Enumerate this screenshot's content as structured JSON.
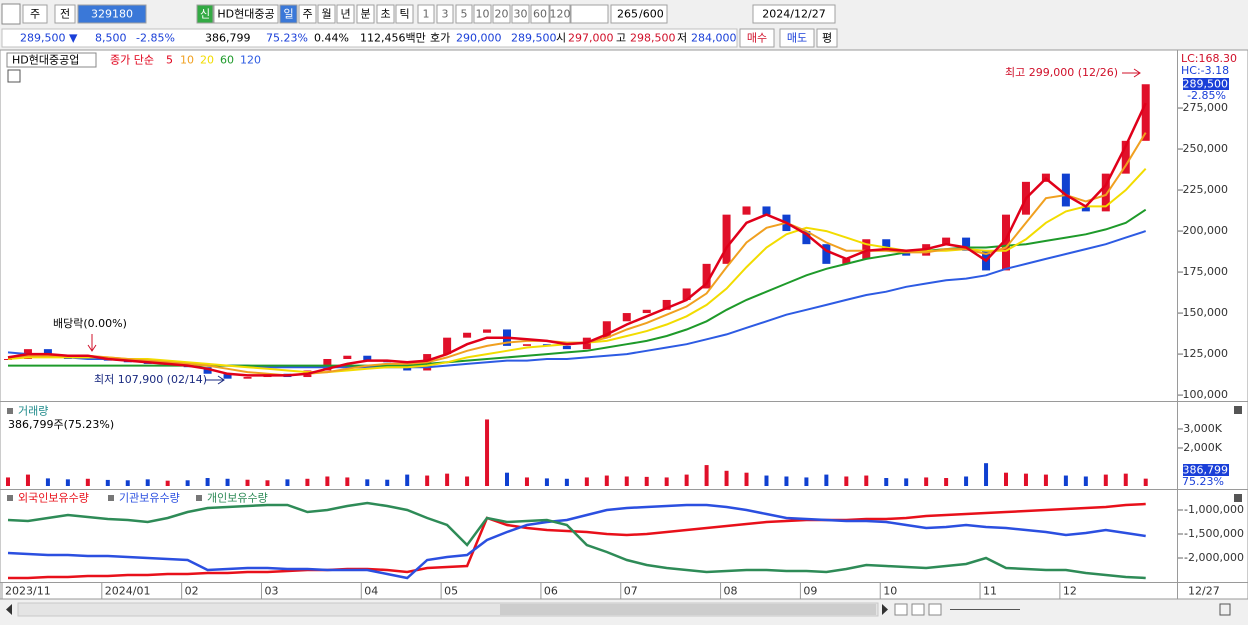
{
  "toolbar": {
    "period_menu": "주",
    "compare": "전",
    "code": "329180",
    "badge": "신",
    "name": "HD현대중공",
    "intervals": [
      "일",
      "주",
      "월",
      "년",
      "분",
      "초",
      "틱"
    ],
    "counts": [
      "1",
      "3",
      "5",
      "10",
      "20",
      "30",
      "60",
      "120"
    ],
    "count": 265,
    "max_count": "/600",
    "date": "2024/12/27"
  },
  "quote": {
    "price": "289,500 ▼",
    "change": "8,500",
    "change_rate": "-2.85%",
    "volume": "386,799",
    "volume_ratio": "75.23%",
    "turnover": "0.44%",
    "amount": "112,456백만",
    "ask_label": "호가",
    "ask": "290,000",
    "bid": "289,500",
    "open_label": "시",
    "open": "297,000",
    "high_label": "고",
    "high": "298,500",
    "low_label": "저",
    "low": "284,000",
    "buy": "매수",
    "sell": "매도",
    "avg": "평"
  },
  "x_axis": {
    "categories": [
      "2023/11",
      null,
      null,
      null,
      null,
      "2024/01",
      null,
      null,
      null,
      "02",
      null,
      null,
      null,
      "03",
      null,
      null,
      null,
      null,
      "04",
      null,
      null,
      null,
      "05",
      null,
      null,
      null,
      null,
      "06",
      null,
      null,
      null,
      "07",
      null,
      null,
      null,
      null,
      "08",
      null,
      null,
      null,
      "09",
      null,
      null,
      null,
      "10",
      null,
      null,
      null,
      null,
      "11",
      null,
      null,
      null,
      "12",
      null,
      null,
      null,
      null
    ],
    "last_label": "12/27"
  },
  "chart_data": [
    {
      "type": "candlestick",
      "title": "HD현대중공업",
      "subtitle": "종가 단순",
      "close": [
        122000,
        128000,
        124000,
        122000,
        123000,
        121000,
        120000,
        119000,
        119000,
        117000,
        113000,
        110000,
        111000,
        113000,
        111000,
        115000,
        122000,
        124000,
        121000,
        120000,
        115000,
        125000,
        135000,
        138000,
        140000,
        130000,
        131000,
        130000,
        128000,
        135000,
        145000,
        150000,
        152000,
        158000,
        165000,
        180000,
        210000,
        215000,
        210000,
        200000,
        192000,
        180000,
        183000,
        195000,
        188000,
        185000,
        192000,
        196000,
        188000,
        176000,
        210000,
        230000,
        235000,
        215000,
        212000,
        235000,
        255000,
        289500
      ],
      "up_color": "#e0102a",
      "down_color": "#1040d0",
      "series": [
        {
          "name": "5",
          "color": "#e0001a",
          "values": [
            123000,
            125000,
            125000,
            124000,
            124000,
            122000,
            121000,
            120000,
            119000,
            118000,
            116000,
            113000,
            112000,
            112000,
            112000,
            113000,
            116000,
            119000,
            121000,
            121000,
            120000,
            121000,
            125000,
            131000,
            135000,
            135000,
            134000,
            133000,
            131000,
            132000,
            137000,
            143000,
            148000,
            153000,
            158000,
            168000,
            190000,
            205000,
            210000,
            205000,
            198000,
            188000,
            183000,
            188000,
            189000,
            188000,
            189000,
            192000,
            190000,
            182000,
            195000,
            220000,
            232000,
            222000,
            215000,
            228000,
            252000,
            278000
          ]
        },
        {
          "name": "10",
          "color": "#f0a020",
          "values": [
            123000,
            124000,
            124000,
            124000,
            124000,
            123000,
            122000,
            121000,
            120000,
            119000,
            118000,
            116000,
            114000,
            113000,
            112000,
            113000,
            114000,
            116000,
            118000,
            119000,
            119000,
            120000,
            123000,
            127000,
            130000,
            132000,
            133000,
            133000,
            132000,
            132000,
            135000,
            140000,
            144000,
            149000,
            154000,
            162000,
            178000,
            193000,
            202000,
            205000,
            200000,
            193000,
            188000,
            188000,
            188000,
            187000,
            187000,
            189000,
            189000,
            186000,
            190000,
            205000,
            220000,
            222000,
            218000,
            222000,
            240000,
            260000
          ]
        },
        {
          "name": "20",
          "color": "#f2dc00",
          "values": [
            122000,
            123000,
            123000,
            123000,
            123000,
            123000,
            122000,
            122000,
            121000,
            120000,
            119000,
            118000,
            117000,
            116000,
            115000,
            114000,
            114000,
            115000,
            116000,
            117000,
            117000,
            118000,
            120000,
            123000,
            125000,
            127000,
            129000,
            130000,
            131000,
            132000,
            133000,
            136000,
            139000,
            143000,
            148000,
            155000,
            165000,
            178000,
            190000,
            198000,
            202000,
            200000,
            196000,
            192000,
            190000,
            188000,
            188000,
            188000,
            189000,
            188000,
            188000,
            195000,
            205000,
            212000,
            215000,
            215000,
            225000,
            238000
          ]
        },
        {
          "name": "60",
          "color": "#1e9a2a",
          "values": [
            118000,
            118000,
            118000,
            118000,
            118000,
            118000,
            118000,
            118000,
            118000,
            118000,
            118000,
            118000,
            118000,
            118000,
            118000,
            118000,
            118000,
            118000,
            118000,
            118000,
            118000,
            119000,
            120000,
            121000,
            122000,
            123000,
            124000,
            125000,
            126000,
            127000,
            129000,
            131000,
            133000,
            136000,
            140000,
            145000,
            152000,
            158000,
            163000,
            168000,
            173000,
            177000,
            180000,
            183000,
            185000,
            187000,
            188000,
            189000,
            190000,
            190000,
            191000,
            192000,
            194000,
            196000,
            198000,
            201000,
            205000,
            213000
          ]
        },
        {
          "name": "120",
          "color": "#2d5be3",
          "values": [
            126000,
            125000,
            124000,
            123000,
            122000,
            122000,
            121000,
            120000,
            119000,
            119000,
            118000,
            118000,
            118000,
            117000,
            117000,
            117000,
            117000,
            117000,
            117000,
            117000,
            117000,
            117000,
            118000,
            119000,
            120000,
            121000,
            121000,
            122000,
            122000,
            123000,
            124000,
            125000,
            127000,
            129000,
            131000,
            134000,
            137000,
            141000,
            145000,
            149000,
            152000,
            155000,
            158000,
            161000,
            163000,
            166000,
            168000,
            170000,
            171000,
            173000,
            177000,
            180000,
            183000,
            186000,
            189000,
            192000,
            196000,
            200000
          ]
        }
      ],
      "ylim": [
        97000,
        305500
      ],
      "yticks": [
        {
          "value": 100000,
          "label": "100,000"
        },
        {
          "value": 125000,
          "label": "125,000"
        },
        {
          "value": 150000,
          "label": "150,000"
        },
        {
          "value": 175000,
          "label": "175,000"
        },
        {
          "value": 200000,
          "label": "200,000"
        },
        {
          "value": 225000,
          "label": "225,000"
        },
        {
          "value": 250000,
          "label": "250,000"
        },
        {
          "value": 275000,
          "label": "275,000"
        }
      ],
      "annotations": {
        "high": "최고 299,000 (12/26)",
        "low": "최저 107,900 (02/14)",
        "dividend": "배당락(0.00%)"
      },
      "axis_labels": {
        "lc": "LC:168.30",
        "hc": "HC:-3.18",
        "last": "289,500",
        "rate": "-2.85%"
      }
    },
    {
      "type": "bar",
      "title": "거래량",
      "subtitle": "386,799주(75.23%)",
      "values": [
        450000,
        600000,
        400000,
        350000,
        380000,
        320000,
        300000,
        350000,
        280000,
        300000,
        420000,
        380000,
        330000,
        300000,
        350000,
        380000,
        500000,
        450000,
        350000,
        330000,
        600000,
        550000,
        650000,
        500000,
        3500000,
        700000,
        450000,
        400000,
        380000,
        450000,
        550000,
        500000,
        480000,
        450000,
        600000,
        1100000,
        800000,
        700000,
        550000,
        500000,
        450000,
        600000,
        500000,
        550000,
        420000,
        400000,
        450000,
        420000,
        500000,
        1200000,
        700000,
        650000,
        600000,
        550000,
        500000,
        600000,
        650000,
        386799
      ],
      "ylim": [
        0,
        4260000
      ],
      "yticks": [
        {
          "value": 2000000,
          "label": "2,000K"
        },
        {
          "value": 3000000,
          "label": "3,000K"
        }
      ],
      "last_label": "386,799",
      "ratio_label": "75.23%"
    },
    {
      "type": "line",
      "series": [
        {
          "name": "외국인보유수량",
          "color": "#e8101a",
          "values": [
            -2417000,
            -2417000,
            -2396000,
            -2396000,
            -2375000,
            -2375000,
            -2354000,
            -2354000,
            -2333000,
            -2333000,
            -2313000,
            -2313000,
            -2292000,
            -2292000,
            -2271000,
            -2250000,
            -2250000,
            -2229000,
            -2229000,
            -2250000,
            -2292000,
            -2208000,
            -2188000,
            -2167000,
            -1167000,
            -1313000,
            -1375000,
            -1417000,
            -1438000,
            -1458000,
            -1500000,
            -1521000,
            -1500000,
            -1458000,
            -1417000,
            -1375000,
            -1333000,
            -1292000,
            -1250000,
            -1229000,
            -1208000,
            -1208000,
            -1208000,
            -1188000,
            -1188000,
            -1167000,
            -1125000,
            -1104000,
            -1083000,
            -1063000,
            -1042000,
            -1021000,
            -1000000,
            -979000,
            -958000,
            -938000,
            -896000,
            -875000
          ]
        },
        {
          "name": "기관보유수량",
          "color": "#2b4fe0",
          "values": [
            -1896000,
            -1917000,
            -1938000,
            -1938000,
            -1958000,
            -1958000,
            -1979000,
            -2000000,
            -2021000,
            -2042000,
            -2250000,
            -2229000,
            -2208000,
            -2208000,
            -2229000,
            -2229000,
            -2250000,
            -2250000,
            -2250000,
            -2333000,
            -2417000,
            -2042000,
            -1979000,
            -1938000,
            -1625000,
            -1458000,
            -1313000,
            -1250000,
            -1208000,
            -1104000,
            -1000000,
            -958000,
            -938000,
            -917000,
            -896000,
            -896000,
            -938000,
            -1000000,
            -1083000,
            -1167000,
            -1188000,
            -1208000,
            -1229000,
            -1229000,
            -1250000,
            -1313000,
            -1375000,
            -1354000,
            -1313000,
            -1354000,
            -1375000,
            -1417000,
            -1458000,
            -1521000,
            -1479000,
            -1417000,
            -1479000,
            -1542000
          ]
        },
        {
          "name": "개인보유수량",
          "color": "#2e8b57",
          "values": [
            -1208000,
            -1229000,
            -1167000,
            -1104000,
            -1146000,
            -1188000,
            -1208000,
            -1250000,
            -1167000,
            -1042000,
            -958000,
            -938000,
            -917000,
            -896000,
            -896000,
            -1042000,
            -1000000,
            -917000,
            -854000,
            -917000,
            -1000000,
            -1167000,
            -1313000,
            -1729000,
            -1167000,
            -1250000,
            -1229000,
            -1208000,
            -1313000,
            -1729000,
            -1875000,
            -2042000,
            -2146000,
            -2208000,
            -2250000,
            -2292000,
            -2271000,
            -2250000,
            -2250000,
            -2271000,
            -2271000,
            -2292000,
            -2229000,
            -2146000,
            -2167000,
            -2188000,
            -2208000,
            -2167000,
            -2125000,
            -2000000,
            -2208000,
            -2229000,
            -2250000,
            -2250000,
            -2313000,
            -2354000,
            -2396000,
            -2417000
          ]
        }
      ],
      "ylim": [
        -2500000,
        -625000
      ],
      "yticks": [
        {
          "value": -2000000,
          "label": "-2,000,000"
        },
        {
          "value": -1500000,
          "label": "-1,500,000"
        },
        {
          "value": -1000000,
          "label": "-1,000,000"
        }
      ]
    }
  ]
}
